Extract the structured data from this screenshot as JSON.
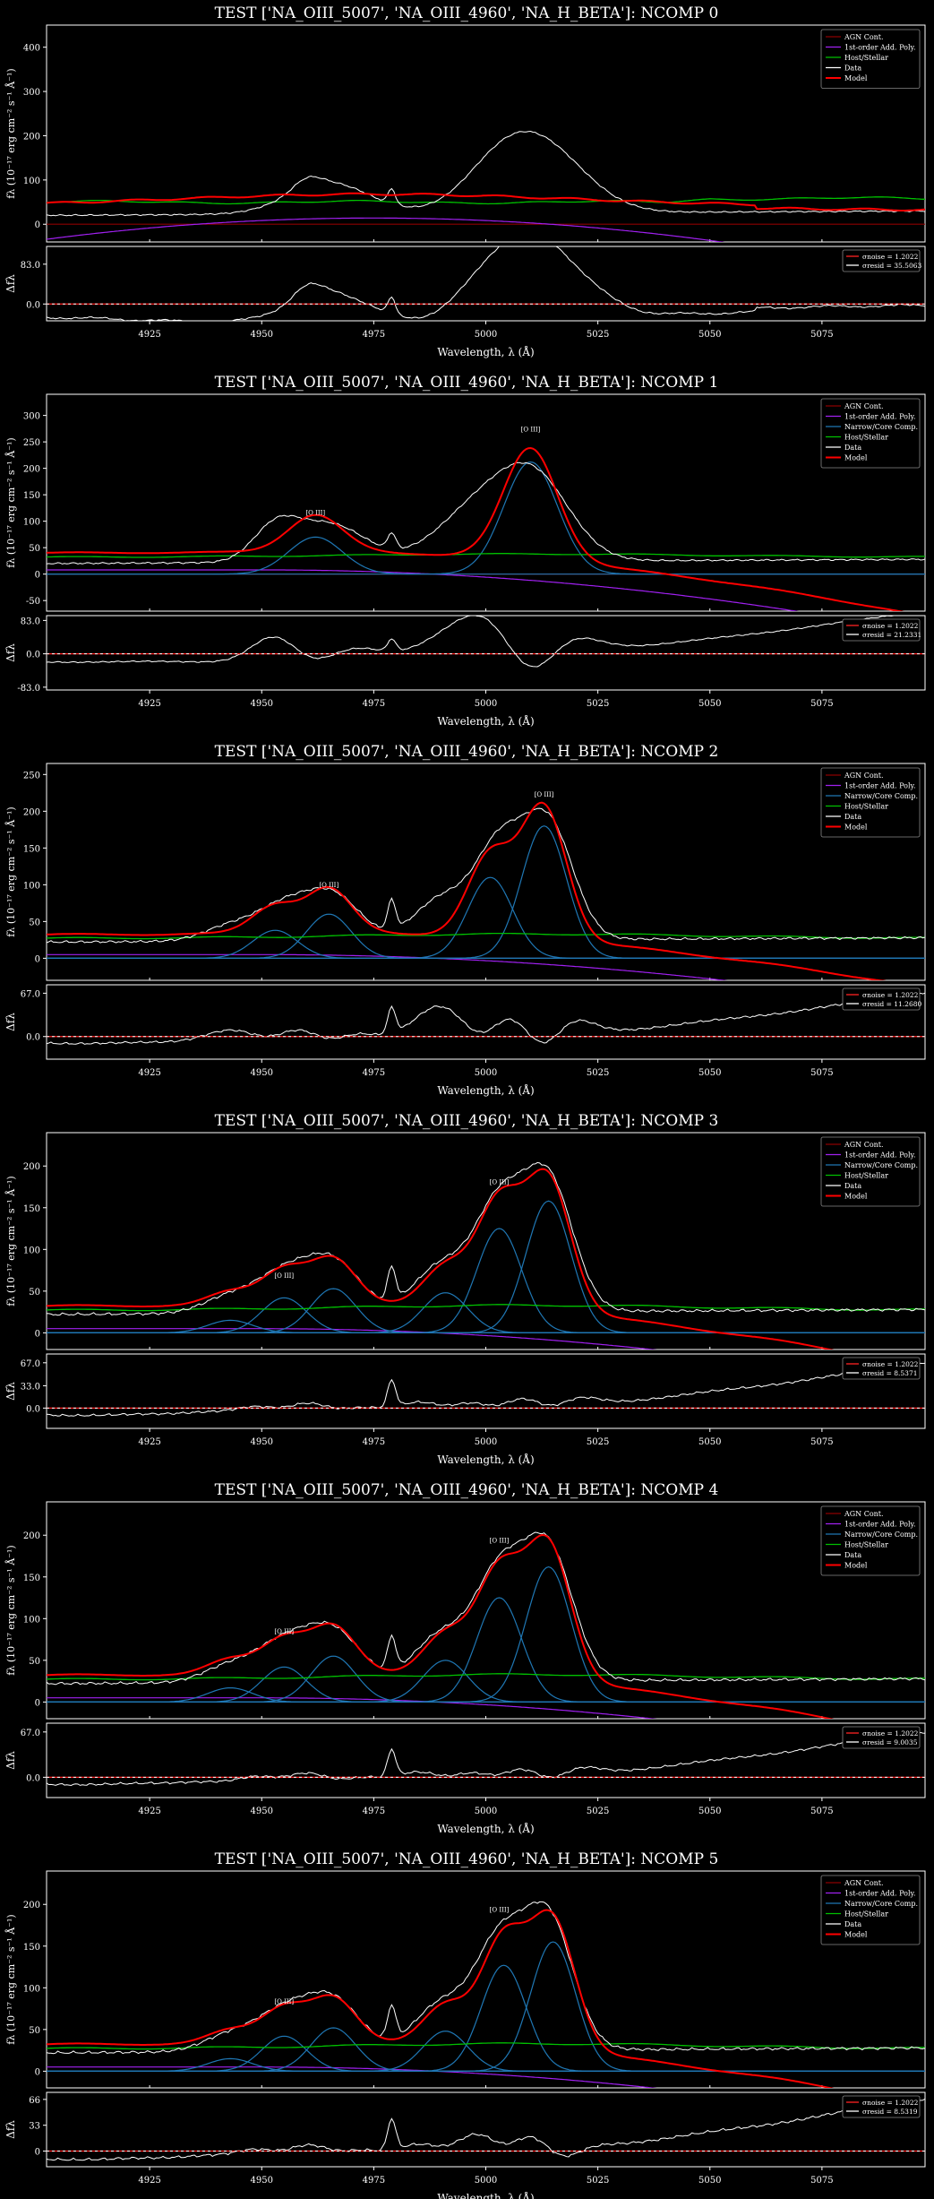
{
  "theme": {
    "background": "#000000",
    "foreground": "#ffffff",
    "colors": {
      "agn": "#8b0000",
      "poly": "#a020f0",
      "narrow": "#1f77b4",
      "host": "#00c000",
      "data": "#ffffff",
      "model": "#ff0000",
      "noise": "#ff2222"
    }
  },
  "axes_text": {
    "ylabel_top": "$f_\\lambda$ (10$^{-17}$ erg cm$^{-2}$ s$^{-1}$ Å$^{-1}$)",
    "ylabel_top_display": "fλ (10⁻¹⁷ erg cm⁻² s⁻¹ Å⁻¹)",
    "ylabel_bottom": "Δfλ",
    "xlabel": "Wavelength, λ (Å)",
    "xticks": [
      "4925",
      "4950",
      "4975",
      "5000",
      "5025",
      "5050",
      "5075"
    ],
    "oiii_label": "[O III]",
    "sigma_noise_label": "σnoise = 1.2022"
  },
  "chart_data": [
    {
      "type": "line",
      "title": "TEST ['NA_OIII_5007', 'NA_OIII_4960', 'NA_H_BETA']: NCOMP 0",
      "ncomp": 0,
      "xlim": [
        4902,
        5098
      ],
      "ylim": [
        -40,
        450
      ],
      "yticks": [
        0,
        100,
        200,
        300,
        400
      ],
      "resid_ylim": [
        -35,
        120
      ],
      "resid_yticks": [
        0.0,
        83.0
      ],
      "legend": [
        "AGN Cont.",
        "1st-order Add. Poly.",
        "Host/Stellar",
        "Data",
        "Model"
      ],
      "sigma_resid_label": "σresid = 35.5063",
      "oiii_labels": [],
      "components": []
    },
    {
      "type": "line",
      "title": "TEST ['NA_OIII_5007', 'NA_OIII_4960', 'NA_H_BETA']: NCOMP 1",
      "ncomp": 1,
      "xlim": [
        4902,
        5098
      ],
      "ylim": [
        -70,
        340
      ],
      "yticks": [
        -50,
        0,
        50,
        100,
        150,
        200,
        250,
        300
      ],
      "resid_ylim": [
        -90,
        95
      ],
      "resid_yticks": [
        -83.0,
        0.0,
        83.0
      ],
      "legend": [
        "AGN Cont.",
        "1st-order Add. Poly.",
        "Narrow/Core Comp.",
        "Host/Stellar",
        "Data",
        "Model"
      ],
      "sigma_resid_label": "σresid = 21.2331",
      "oiii_labels": [
        {
          "x": 4962,
          "y": 112
        },
        {
          "x": 5010,
          "y": 270
        }
      ],
      "components": [
        {
          "mu": 4962,
          "amp": 70,
          "sig": 6
        },
        {
          "mu": 5010,
          "amp": 212,
          "sig": 6
        }
      ]
    },
    {
      "type": "line",
      "title": "TEST ['NA_OIII_5007', 'NA_OIII_4960', 'NA_H_BETA']: NCOMP 2",
      "ncomp": 2,
      "xlim": [
        4902,
        5098
      ],
      "ylim": [
        -30,
        265
      ],
      "yticks": [
        0,
        50,
        100,
        150,
        200,
        250
      ],
      "resid_ylim": [
        -35,
        80
      ],
      "resid_yticks": [
        0.0,
        67.0
      ],
      "legend": [
        "AGN Cont.",
        "1st-order Add. Poly.",
        "Narrow/Core Comp.",
        "Host/Stellar",
        "Data",
        "Model"
      ],
      "sigma_resid_label": "σresid = 11.2680",
      "oiii_labels": [
        {
          "x": 4965,
          "y": 97
        },
        {
          "x": 5013,
          "y": 220
        }
      ],
      "components": [
        {
          "mu": 4953,
          "amp": 38,
          "sig": 5
        },
        {
          "mu": 4965,
          "amp": 60,
          "sig": 5
        },
        {
          "mu": 5001,
          "amp": 110,
          "sig": 5
        },
        {
          "mu": 5013,
          "amp": 180,
          "sig": 5
        }
      ]
    },
    {
      "type": "line",
      "title": "TEST ['NA_OIII_5007', 'NA_OIII_4960', 'NA_H_BETA']: NCOMP 3",
      "ncomp": 3,
      "xlim": [
        4902,
        5098
      ],
      "ylim": [
        -20,
        240
      ],
      "yticks": [
        0,
        50,
        100,
        150,
        200
      ],
      "resid_ylim": [
        -30,
        80
      ],
      "resid_yticks": [
        0.0,
        33.0,
        67.0
      ],
      "legend": [
        "AGN Cont.",
        "1st-order Add. Poly.",
        "Narrow/Core Comp.",
        "Host/Stellar",
        "Data",
        "Model"
      ],
      "sigma_resid_label": "σresid = 8.5371",
      "oiii_labels": [
        {
          "x": 4955,
          "y": 66
        },
        {
          "x": 5003,
          "y": 178
        }
      ],
      "components": [
        {
          "mu": 4943,
          "amp": 15,
          "sig": 5
        },
        {
          "mu": 4955,
          "amp": 42,
          "sig": 5
        },
        {
          "mu": 4966,
          "amp": 53,
          "sig": 5
        },
        {
          "mu": 4991,
          "amp": 48,
          "sig": 5
        },
        {
          "mu": 5003,
          "amp": 125,
          "sig": 5
        },
        {
          "mu": 5014,
          "amp": 158,
          "sig": 5
        }
      ]
    },
    {
      "type": "line",
      "title": "TEST ['NA_OIII_5007', 'NA_OIII_4960', 'NA_H_BETA']: NCOMP 4",
      "ncomp": 4,
      "xlim": [
        4902,
        5098
      ],
      "ylim": [
        -20,
        240
      ],
      "yticks": [
        0,
        50,
        100,
        150,
        200
      ],
      "resid_ylim": [
        -30,
        80
      ],
      "resid_yticks": [
        0.0,
        67.0
      ],
      "legend": [
        "AGN Cont.",
        "1st-order Add. Poly.",
        "Narrow/Core Comp.",
        "Host/Stellar",
        "Data",
        "Model"
      ],
      "sigma_resid_label": "σresid = 9.0035",
      "oiii_labels": [
        {
          "x": 4955,
          "y": 82
        },
        {
          "x": 5003,
          "y": 191
        }
      ],
      "components": [
        {
          "mu": 4943,
          "amp": 17,
          "sig": 5
        },
        {
          "mu": 4955,
          "amp": 42,
          "sig": 5
        },
        {
          "mu": 4966,
          "amp": 55,
          "sig": 5
        },
        {
          "mu": 4991,
          "amp": 50,
          "sig": 5
        },
        {
          "mu": 5003,
          "amp": 125,
          "sig": 5
        },
        {
          "mu": 5014,
          "amp": 162,
          "sig": 5
        }
      ]
    },
    {
      "type": "line",
      "title": "TEST ['NA_OIII_5007', 'NA_OIII_4960', 'NA_H_BETA']: NCOMP 5",
      "ncomp": 5,
      "xlim": [
        4902,
        5098
      ],
      "ylim": [
        -20,
        240
      ],
      "yticks": [
        0,
        50,
        100,
        150,
        200
      ],
      "resid_ylim": [
        -20,
        75
      ],
      "resid_yticks": [
        0,
        33,
        66
      ],
      "legend": [
        "AGN Cont.",
        "1st-order Add. Poly.",
        "Narrow/Core Comp.",
        "Host/Stellar",
        "Data",
        "Model"
      ],
      "sigma_resid_label": "σresid = 8.5319",
      "oiii_labels": [
        {
          "x": 4955,
          "y": 81
        },
        {
          "x": 5003,
          "y": 191
        }
      ],
      "components": [
        {
          "mu": 4943,
          "amp": 15,
          "sig": 5
        },
        {
          "mu": 4955,
          "amp": 42,
          "sig": 5
        },
        {
          "mu": 4966,
          "amp": 52,
          "sig": 5
        },
        {
          "mu": 4991,
          "amp": 48,
          "sig": 5
        },
        {
          "mu": 5004,
          "amp": 127,
          "sig": 5
        },
        {
          "mu": 5015,
          "amp": 155,
          "sig": 5
        }
      ]
    }
  ]
}
